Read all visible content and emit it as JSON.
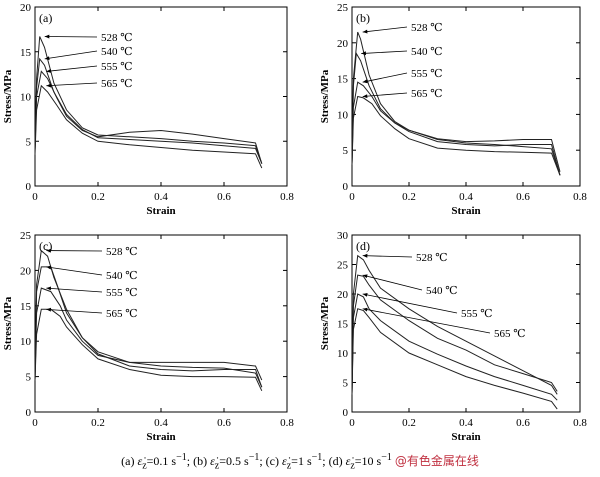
{
  "chart_data": [
    {
      "type": "line",
      "panel_label": "(a)",
      "xlabel": "Strain",
      "ylabel": "Stress/MPa",
      "xlim": [
        0,
        0.8
      ],
      "ylim": [
        0,
        20
      ],
      "xticks": [
        "0",
        "0.2",
        "0.4",
        "0.6",
        "0.8"
      ],
      "yticks": [
        "0",
        "5",
        "10",
        "15",
        "20"
      ],
      "grid": false,
      "legend": "annotations with arrows",
      "series": [
        {
          "name": "528 ℃",
          "x": [
            0,
            0.005,
            0.015,
            0.03,
            0.06,
            0.1,
            0.15,
            0.2,
            0.3,
            0.4,
            0.5,
            0.6,
            0.7,
            0.72
          ],
          "y": [
            4,
            12,
            16.7,
            15.5,
            11.5,
            8.5,
            6.5,
            5.7,
            5.5,
            5.3,
            5.0,
            4.8,
            4.5,
            2.5
          ]
        },
        {
          "name": "540 ℃",
          "x": [
            0,
            0.005,
            0.015,
            0.03,
            0.06,
            0.1,
            0.15,
            0.2,
            0.3,
            0.4,
            0.5,
            0.6,
            0.7,
            0.72
          ],
          "y": [
            4,
            11,
            14.2,
            13.5,
            10.5,
            8.0,
            6.3,
            5.4,
            5.2,
            5.0,
            4.8,
            4.5,
            4.2,
            2.5
          ]
        },
        {
          "name": "555 ℃",
          "x": [
            0,
            0.005,
            0.02,
            0.04,
            0.07,
            0.1,
            0.15,
            0.2,
            0.3,
            0.4,
            0.5,
            0.6,
            0.7,
            0.72
          ],
          "y": [
            4,
            10,
            12.8,
            12.0,
            9.8,
            7.8,
            6.2,
            5.5,
            6.0,
            6.2,
            5.8,
            5.3,
            4.8,
            2.5
          ]
        },
        {
          "name": "565 ℃",
          "x": [
            0,
            0.005,
            0.02,
            0.04,
            0.07,
            0.1,
            0.15,
            0.2,
            0.3,
            0.4,
            0.5,
            0.6,
            0.7,
            0.72
          ],
          "y": [
            3.5,
            8.5,
            11.2,
            10.5,
            9.0,
            7.4,
            5.9,
            5.0,
            4.6,
            4.3,
            4.0,
            3.8,
            3.6,
            2.0
          ]
        }
      ]
    },
    {
      "type": "line",
      "panel_label": "(b)",
      "xlabel": "Strain",
      "ylabel": "Stress/MPa",
      "xlim": [
        0,
        0.8
      ],
      "ylim": [
        0,
        25
      ],
      "xticks": [
        "0",
        "0.2",
        "0.4",
        "0.6",
        "0.8"
      ],
      "yticks": [
        "0",
        "5",
        "10",
        "15",
        "20",
        "25"
      ],
      "grid": false,
      "legend": "annotations with arrows",
      "series": [
        {
          "name": "528 ℃",
          "x": [
            0,
            0.005,
            0.02,
            0.03,
            0.06,
            0.1,
            0.15,
            0.2,
            0.3,
            0.4,
            0.5,
            0.6,
            0.7,
            0.73
          ],
          "y": [
            3,
            15,
            21.5,
            20.5,
            15.5,
            11.5,
            9.0,
            7.8,
            6.5,
            6.0,
            5.8,
            5.5,
            5.2,
            1.5
          ]
        },
        {
          "name": "540 ℃",
          "x": [
            0,
            0.005,
            0.015,
            0.03,
            0.06,
            0.1,
            0.15,
            0.2,
            0.3,
            0.4,
            0.5,
            0.6,
            0.7,
            0.73
          ],
          "y": [
            3,
            14,
            18.5,
            17.5,
            14.0,
            10.8,
            8.8,
            7.6,
            6.2,
            5.8,
            5.6,
            5.8,
            5.8,
            1.5
          ]
        },
        {
          "name": "555 ℃",
          "x": [
            0,
            0.005,
            0.02,
            0.04,
            0.07,
            0.1,
            0.15,
            0.2,
            0.3,
            0.4,
            0.5,
            0.6,
            0.7,
            0.73
          ],
          "y": [
            3,
            11,
            14.5,
            14.0,
            12.5,
            10.5,
            8.8,
            7.8,
            6.6,
            6.2,
            6.3,
            6.5,
            6.5,
            2.0
          ]
        },
        {
          "name": "565 ℃",
          "x": [
            0,
            0.005,
            0.02,
            0.04,
            0.07,
            0.1,
            0.15,
            0.2,
            0.3,
            0.4,
            0.5,
            0.6,
            0.7,
            0.73
          ],
          "y": [
            3,
            9.5,
            12.5,
            12.3,
            11.5,
            9.8,
            8.0,
            6.6,
            5.3,
            5.0,
            4.8,
            4.7,
            4.6,
            1.5
          ]
        }
      ]
    },
    {
      "type": "line",
      "panel_label": "(c)",
      "xlabel": "Strain",
      "ylabel": "Stress/MPa",
      "xlim": [
        0,
        0.8
      ],
      "ylim": [
        0,
        25
      ],
      "xticks": [
        "0",
        "0.2",
        "0.4",
        "0.6",
        "0.8"
      ],
      "yticks": [
        "0",
        "5",
        "10",
        "15",
        "20",
        "25"
      ],
      "grid": false,
      "legend": "annotations with arrows",
      "series": [
        {
          "name": "528 ℃",
          "x": [
            0,
            0.005,
            0.02,
            0.04,
            0.06,
            0.1,
            0.15,
            0.2,
            0.3,
            0.4,
            0.5,
            0.6,
            0.7,
            0.72
          ],
          "y": [
            4.5,
            18,
            22.8,
            22.0,
            19.0,
            14.5,
            10.5,
            8.5,
            7.0,
            6.5,
            6.3,
            6.2,
            5.5,
            3.5
          ]
        },
        {
          "name": "540 ℃",
          "x": [
            0,
            0.005,
            0.02,
            0.05,
            0.07,
            0.1,
            0.15,
            0.2,
            0.3,
            0.4,
            0.5,
            0.6,
            0.7,
            0.72
          ],
          "y": [
            4.5,
            17,
            20.5,
            20.5,
            18.0,
            14.0,
            10.5,
            8.2,
            6.5,
            6.0,
            5.8,
            6.0,
            6.0,
            3.5
          ]
        },
        {
          "name": "555 ℃",
          "x": [
            0,
            0.005,
            0.02,
            0.05,
            0.08,
            0.1,
            0.15,
            0.2,
            0.3,
            0.4,
            0.5,
            0.6,
            0.7,
            0.72
          ],
          "y": [
            4.5,
            14,
            17.5,
            17.0,
            15.0,
            13.0,
            10.0,
            8.0,
            7.0,
            7.0,
            7.0,
            7.0,
            6.5,
            4.5
          ]
        },
        {
          "name": "565 ℃",
          "x": [
            0,
            0.005,
            0.02,
            0.05,
            0.08,
            0.1,
            0.15,
            0.2,
            0.3,
            0.4,
            0.5,
            0.6,
            0.7,
            0.72
          ],
          "y": [
            4.5,
            11,
            14.5,
            14.5,
            13.5,
            12.0,
            9.5,
            7.5,
            6.0,
            5.2,
            5.0,
            5.0,
            4.9,
            3.0
          ]
        }
      ]
    },
    {
      "type": "line",
      "panel_label": "(d)",
      "xlabel": "Strain",
      "ylabel": "Stress/MPa",
      "xlim": [
        0,
        0.8
      ],
      "ylim": [
        0,
        30
      ],
      "xticks": [
        "0",
        "0.2",
        "0.4",
        "0.6",
        "0.8"
      ],
      "yticks": [
        "0",
        "5",
        "10",
        "15",
        "20",
        "25",
        "30"
      ],
      "grid": false,
      "legend": "annotations with arrows",
      "series": [
        {
          "name": "528 ℃",
          "x": [
            0,
            0.005,
            0.02,
            0.04,
            0.06,
            0.1,
            0.2,
            0.3,
            0.4,
            0.5,
            0.6,
            0.7,
            0.72
          ],
          "y": [
            3,
            20,
            26.5,
            25.8,
            24.0,
            21.0,
            17.5,
            14.5,
            12.0,
            9.5,
            7.0,
            4.5,
            3.0
          ]
        },
        {
          "name": "540 ℃",
          "x": [
            0,
            0.005,
            0.02,
            0.04,
            0.06,
            0.1,
            0.2,
            0.3,
            0.4,
            0.5,
            0.6,
            0.7,
            0.72
          ],
          "y": [
            3,
            18,
            23.2,
            23.0,
            21.5,
            19.0,
            15.5,
            12.5,
            10.5,
            8.0,
            6.5,
            5.0,
            3.5
          ]
        },
        {
          "name": "555 ℃",
          "x": [
            0,
            0.005,
            0.02,
            0.04,
            0.06,
            0.1,
            0.2,
            0.3,
            0.4,
            0.5,
            0.6,
            0.7,
            0.72
          ],
          "y": [
            3,
            16,
            20.0,
            19.5,
            17.5,
            15.5,
            12.0,
            9.8,
            7.8,
            6.0,
            4.5,
            3.0,
            2.0
          ]
        },
        {
          "name": "565 ℃",
          "x": [
            0,
            0.005,
            0.02,
            0.04,
            0.06,
            0.1,
            0.2,
            0.3,
            0.4,
            0.5,
            0.6,
            0.7,
            0.72
          ],
          "y": [
            3,
            14,
            17.5,
            17.2,
            16.0,
            13.5,
            10.0,
            8.0,
            6.0,
            4.5,
            3.2,
            1.8,
            0.5
          ]
        }
      ]
    }
  ],
  "caption": {
    "a": "(a)",
    "a_rate": "=0.1 s",
    "b": "; (b)",
    "b_rate": "=0.5 s",
    "c": "; (c)",
    "c_rate": "=1 s",
    "d": "; (d)",
    "d_rate": "=10 s",
    "watermark": "@有色金属在线"
  }
}
